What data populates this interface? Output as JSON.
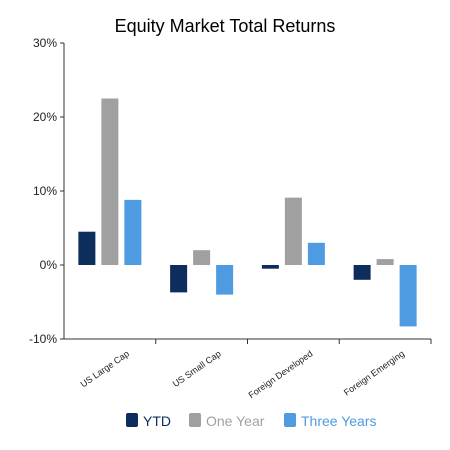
{
  "chart_data": {
    "type": "bar",
    "title": "Equity Market Total Returns",
    "xlabel": "",
    "ylabel": "",
    "ylim": [
      -10,
      30
    ],
    "yticks": [
      -10,
      0,
      10,
      20,
      30
    ],
    "ytick_labels": [
      "-10%",
      "0%",
      "10%",
      "20%",
      "30%"
    ],
    "categories": [
      "US Large Cap",
      "US Small Cap",
      "Foreign Developed",
      "Foreign Emerging"
    ],
    "series": [
      {
        "name": "YTD",
        "color": "#0d2d5c",
        "values": [
          4.5,
          -3.7,
          -0.5,
          -2.0
        ]
      },
      {
        "name": "One Year",
        "color": "#a0a0a0",
        "values": [
          22.5,
          2.0,
          9.1,
          0.8
        ]
      },
      {
        "name": "Three Years",
        "color": "#4e9be2",
        "values": [
          8.8,
          -4.0,
          3.0,
          -8.3
        ]
      }
    ],
    "grid": false,
    "legend_position": "bottom"
  }
}
